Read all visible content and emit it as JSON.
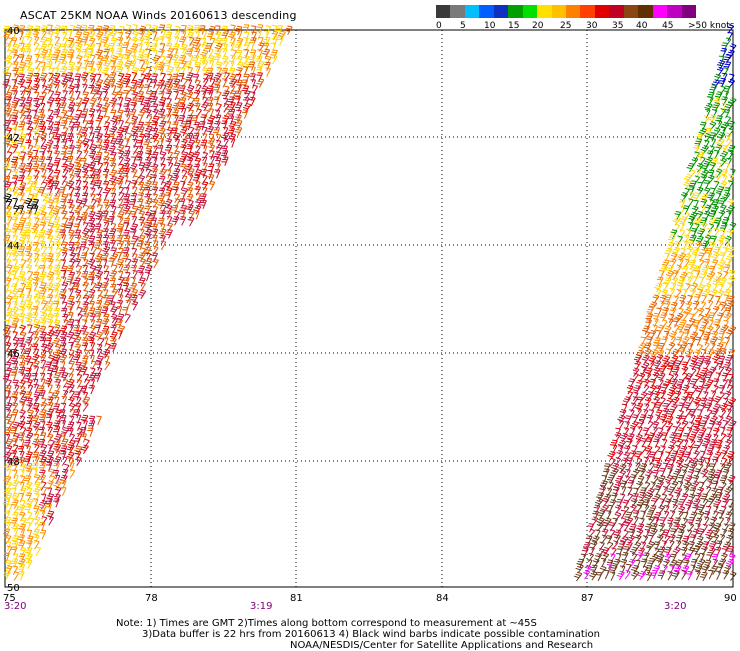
{
  "title": "ASCAT 25KM NOAA Winds 20160613 descending",
  "legend": {
    "colors": [
      "#3a3a3a",
      "#7a7a7a",
      "#00bfff",
      "#0060ff",
      "#1030c0",
      "#00a000",
      "#00e000",
      "#ffe000",
      "#ffc000",
      "#ff8000",
      "#ff4000",
      "#e00000",
      "#c00020",
      "#8b4513",
      "#603000",
      "#ff00ff",
      "#c000c0",
      "#800080"
    ],
    "labels": [
      "0",
      "5",
      "10",
      "15",
      "20",
      "25",
      "30",
      "35",
      "40",
      "45",
      ">50 knots"
    ]
  },
  "axes": {
    "lon_labels": [
      "75",
      "78",
      "81",
      "84",
      "87",
      "90"
    ],
    "lat_labels": [
      "40",
      "42",
      "44",
      "46",
      "48",
      "50"
    ]
  },
  "times": [
    {
      "label": "3:20",
      "side": "left"
    },
    {
      "label": "3:19",
      "side": "center"
    },
    {
      "label": "3:20",
      "side": "right"
    }
  ],
  "notes": [
    "Note: 1) Times are GMT 2)Times along bottom correspond to measurement at ~45S",
    "3)Data buffer is 22 hrs from 20160613 4) Black wind barbs indicate possible contamination",
    "NOAA/NESDIS/Center for Satellite Applications and Research"
  ],
  "barb_colors": {
    "yellow": "#ffd700",
    "orange": "#ff8c00",
    "dark_orange": "#e05a00",
    "red": "#e00000",
    "crimson": "#c0103a",
    "brown": "#6b3a1a",
    "green": "#009000",
    "blue": "#0000c0",
    "magenta": "#ff00ff",
    "black": "#000000"
  }
}
